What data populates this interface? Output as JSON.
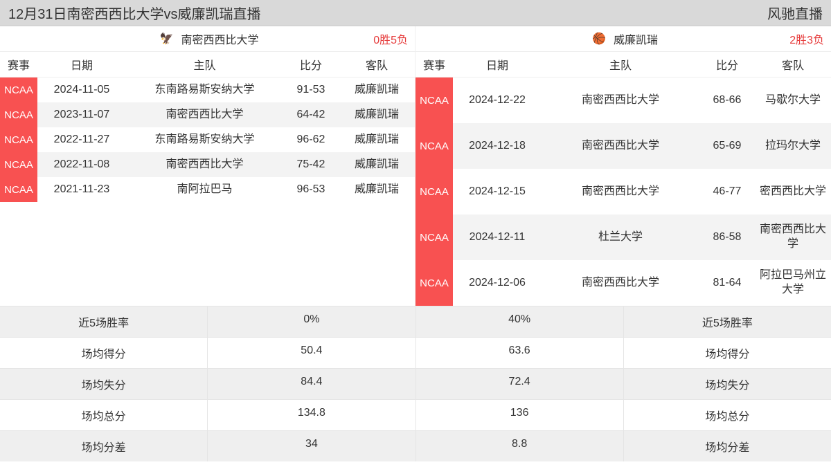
{
  "colors": {
    "badge_bg": "#f85151",
    "record_color": "#e63b3b",
    "headerbar_bg": "#d9d9d9",
    "alt_row_bg": "#f3f3f3",
    "stat_shade_bg": "#efefef",
    "border": "#e5e5e5"
  },
  "header": {
    "title": "12月31日南密西西比大学vs威廉凯瑞直播",
    "brand": "风驰直播"
  },
  "left": {
    "team_name": "南密西西比大学",
    "record": "0胜5负",
    "logo_glyph": "🦅",
    "columns": {
      "event": "赛事",
      "date": "日期",
      "home": "主队",
      "score": "比分",
      "away": "客队"
    },
    "rows": [
      {
        "event": "NCAA",
        "date": "2024-11-05",
        "home": "东南路易斯安纳大学",
        "score": "91-53",
        "away": "威廉凯瑞"
      },
      {
        "event": "NCAA",
        "date": "2023-11-07",
        "home": "南密西西比大学",
        "score": "64-42",
        "away": "威廉凯瑞"
      },
      {
        "event": "NCAA",
        "date": "2022-11-27",
        "home": "东南路易斯安纳大学",
        "score": "96-62",
        "away": "威廉凯瑞"
      },
      {
        "event": "NCAA",
        "date": "2022-11-08",
        "home": "南密西西比大学",
        "score": "75-42",
        "away": "威廉凯瑞"
      },
      {
        "event": "NCAA",
        "date": "2021-11-23",
        "home": "南阿拉巴马",
        "score": "96-53",
        "away": "威廉凯瑞"
      }
    ]
  },
  "right": {
    "team_name": "威廉凯瑞",
    "record": "2胜3负",
    "logo_glyph": "🏀",
    "columns": {
      "event": "赛事",
      "date": "日期",
      "home": "主队",
      "score": "比分",
      "away": "客队"
    },
    "rows": [
      {
        "event": "NCAA",
        "date": "2024-12-22",
        "home": "南密西西比大学",
        "score": "68-66",
        "away": "马歇尔大学"
      },
      {
        "event": "NCAA",
        "date": "2024-12-18",
        "home": "南密西西比大学",
        "score": "65-69",
        "away": "拉玛尔大学"
      },
      {
        "event": "NCAA",
        "date": "2024-12-15",
        "home": "南密西西比大学",
        "score": "46-77",
        "away": "密西西比大学"
      },
      {
        "event": "NCAA",
        "date": "2024-12-11",
        "home": "杜兰大学",
        "score": "86-58",
        "away": "南密西西比大学"
      },
      {
        "event": "NCAA",
        "date": "2024-12-06",
        "home": "南密西西比大学",
        "score": "81-64",
        "away": "阿拉巴马州立大学"
      }
    ]
  },
  "stats": {
    "labels": {
      "winrate": "近5场胜率",
      "ppg": "场均得分",
      "papg": "场均失分",
      "total": "场均总分",
      "diff": "场均分差"
    },
    "left": {
      "winrate": "0%",
      "ppg": "50.4",
      "papg": "84.4",
      "total": "134.8",
      "diff": "34"
    },
    "right": {
      "winrate": "40%",
      "ppg": "63.6",
      "papg": "72.4",
      "total": "136",
      "diff": "8.8"
    }
  }
}
